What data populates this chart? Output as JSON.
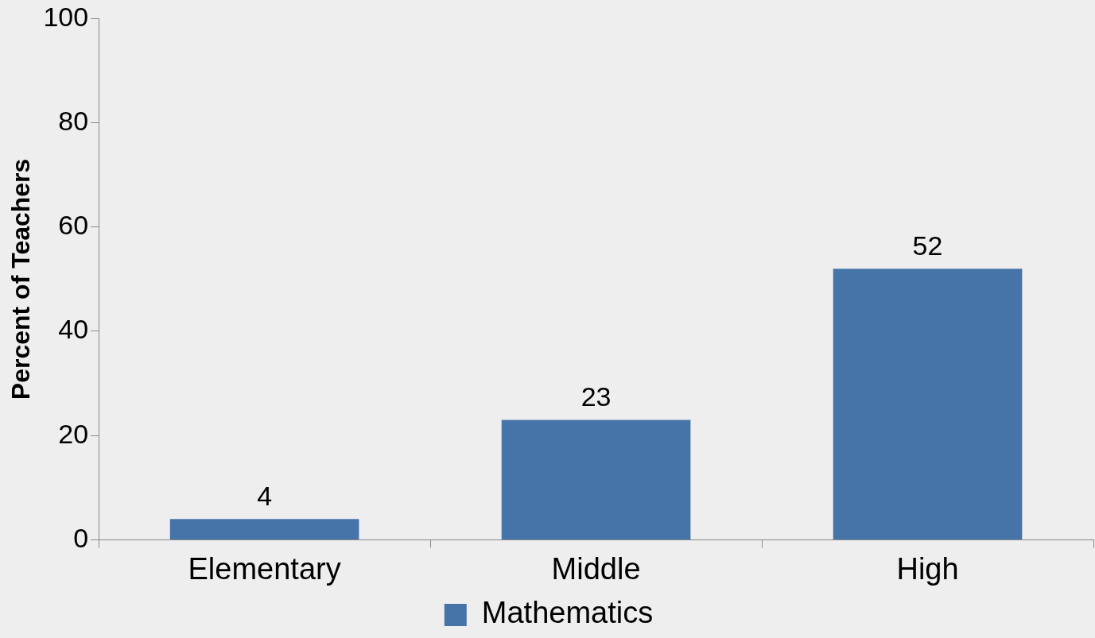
{
  "chart_data": {
    "type": "bar",
    "ylabel": "Percent of Teachers",
    "categories": [
      "Elementary",
      "Middle",
      "High"
    ],
    "series": [
      {
        "name": "Mathematics",
        "color": "#4674a8",
        "values": [
          4,
          23,
          52
        ]
      }
    ],
    "ylim": [
      0,
      100
    ],
    "yticks": [
      0,
      20,
      40,
      60,
      80,
      100
    ],
    "grid": false,
    "legend": "bottom",
    "data_labels": true
  }
}
